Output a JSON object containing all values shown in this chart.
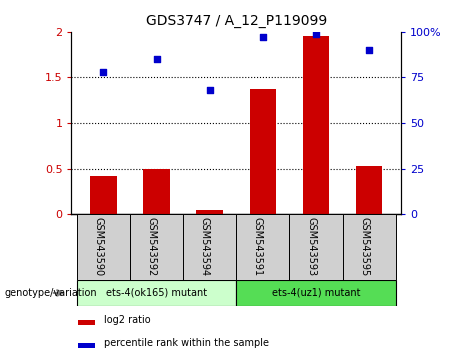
{
  "title": "GDS3747 / A_12_P119099",
  "categories": [
    "GSM543590",
    "GSM543592",
    "GSM543594",
    "GSM543591",
    "GSM543593",
    "GSM543595"
  ],
  "log2_ratio": [
    0.42,
    0.5,
    0.05,
    1.37,
    1.95,
    0.53
  ],
  "percentile_rank_pct": [
    78,
    85,
    68,
    97,
    99,
    90
  ],
  "bar_color": "#cc0000",
  "dot_color": "#0000cc",
  "ylim_left": [
    0,
    2
  ],
  "ylim_right": [
    0,
    100
  ],
  "yticks_left": [
    0,
    0.5,
    1.0,
    1.5,
    2.0
  ],
  "yticks_right": [
    0,
    25,
    50,
    75,
    100
  ],
  "ytick_labels_left": [
    "0",
    "0.5",
    "1",
    "1.5",
    "2"
  ],
  "ytick_labels_right": [
    "0",
    "25",
    "50",
    "75",
    "100%"
  ],
  "hlines": [
    0.5,
    1.0,
    1.5
  ],
  "groups": [
    {
      "label": "ets-4(ok165) mutant",
      "indices": [
        0,
        1,
        2
      ],
      "color": "#ccffcc"
    },
    {
      "label": "ets-4(uz1) mutant",
      "indices": [
        3,
        4,
        5
      ],
      "color": "#55dd55"
    }
  ],
  "legend_bar_label": "log2 ratio",
  "legend_dot_label": "percentile rank within the sample",
  "genotype_label": "genotype/variation",
  "bar_width": 0.5,
  "label_box_color": "#d0d0d0",
  "separator_color": "#000000"
}
